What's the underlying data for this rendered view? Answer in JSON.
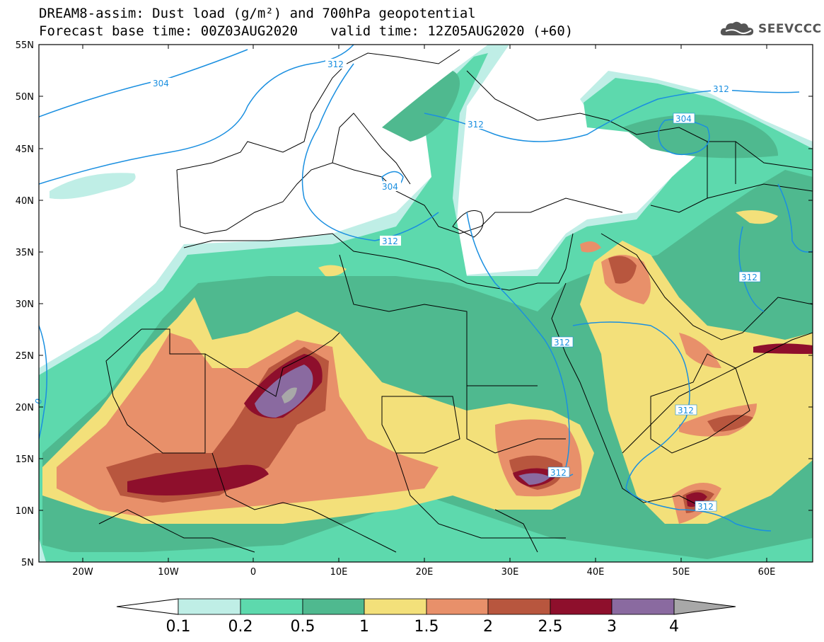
{
  "header": {
    "line1": "DREAM8-assim: Dust load (g/m²) and 700hPa geopotential",
    "base_time": "Forecast base time: 00Z03AUG2020",
    "valid_time": "valid time: 12Z05AUG2020 (+60)"
  },
  "logo": {
    "text": "SEEVCCC",
    "icon": "cloud-icon"
  },
  "map": {
    "lat_labels": [
      "55N",
      "50N",
      "45N",
      "40N",
      "35N",
      "30N",
      "25N",
      "20N",
      "15N",
      "10N",
      "5N"
    ],
    "lon_labels": [
      "20W",
      "10W",
      "0",
      "10E",
      "20E",
      "30E",
      "40E",
      "50E",
      "60E"
    ],
    "contour_labels": [
      "304",
      "312",
      "312",
      "304",
      "312",
      "312",
      "312",
      "304",
      "312",
      "312",
      "312",
      "312",
      "0"
    ]
  },
  "colorbar": {
    "labels": [
      "0.1",
      "0.2",
      "0.5",
      "1",
      "1.5",
      "2",
      "2.5",
      "3",
      "4"
    ],
    "colors": [
      "#bfeee6",
      "#5dd9ad",
      "#4fb98f",
      "#f3e07a",
      "#e8906a",
      "#b8563e",
      "#8e0f2c",
      "#8a6aa0",
      "#a8a8a8"
    ]
  }
}
